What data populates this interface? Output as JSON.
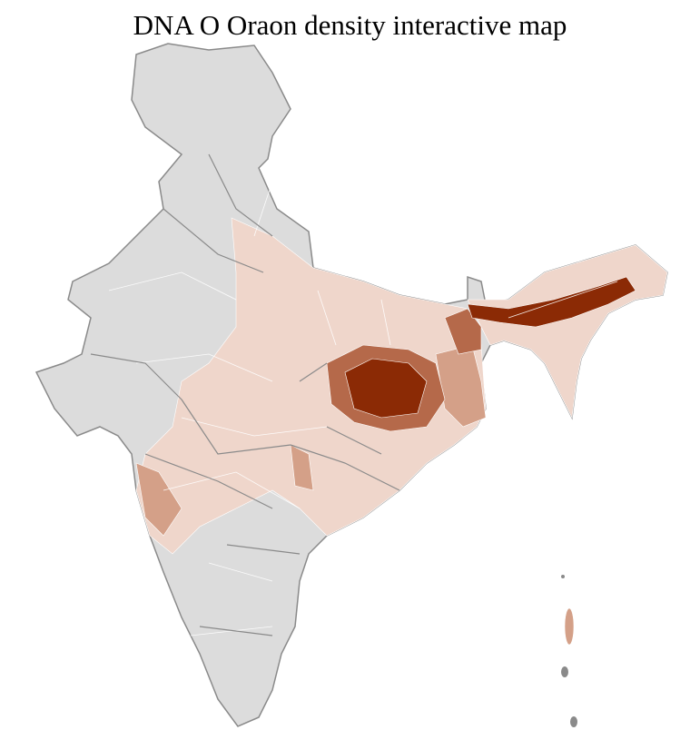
{
  "title": "DNA O Oraon density interactive map",
  "map": {
    "region": "India",
    "colors": {
      "no_data": "#dcdcdc",
      "border": "#8a8a8a",
      "district_line": "#ffffff",
      "low": "#efd6cb",
      "medium": "#d4a088",
      "high": "#b5694a",
      "highest": "#8b2a05"
    }
  }
}
